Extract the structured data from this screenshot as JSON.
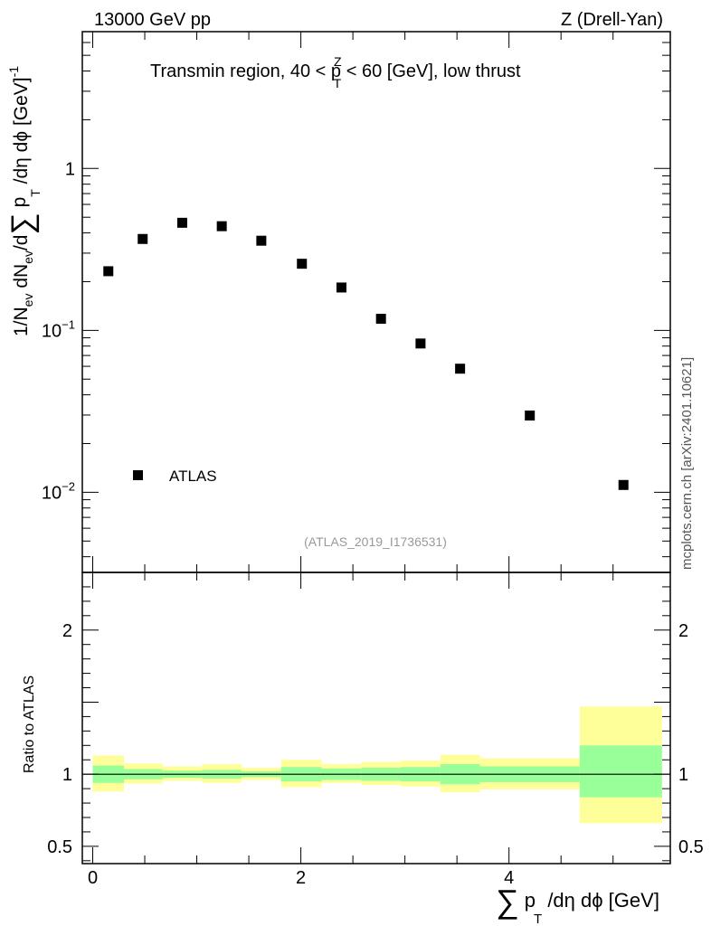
{
  "header": {
    "left": "13000 GeV pp",
    "right": "Z (Drell-Yan)"
  },
  "title": {
    "main": "Transmin region, 40 < p",
    "sup": "Z",
    "sub": "T",
    "rest": " < 60 [GeV], low thrust"
  },
  "watermark": "mcplots.cern.ch [arXiv:2401.10621]",
  "analysis_id": "(ATLAS_2019_I1736531)",
  "y_label": {
    "a": "1/N",
    "a_sub": "ev",
    "b": " dN",
    "b_sub": "ev",
    "c": "/d",
    "sum": "∑",
    "d": " p",
    "d_sub": "T",
    "e": " /dη dϕ  [GeV]",
    "e_sup": "-1"
  },
  "x_label": {
    "sum": "∑",
    "a": " p",
    "a_sub": "T",
    "b": " /dη dϕ [GeV]"
  },
  "ratio_label": "Ratio to ATLAS",
  "main_ticks": [
    {
      "value": 1,
      "label": "1"
    },
    {
      "value": 0.1,
      "label": "10",
      "sup": "−1"
    },
    {
      "value": 0.01,
      "label": "10",
      "sup": "−2"
    }
  ],
  "ratio_ticks": [
    {
      "value": 2,
      "label": "2"
    },
    {
      "value": 1,
      "label": "1"
    },
    {
      "value": 0.5,
      "label": "0.5"
    }
  ],
  "x_ticks": [
    {
      "value": 0,
      "label": "0"
    },
    {
      "value": 2,
      "label": "2"
    },
    {
      "value": 4,
      "label": "4"
    }
  ],
  "colors": {
    "band_outer": "#ffff99",
    "band_inner": "#99ff99",
    "marker": "#000000"
  },
  "chart_data": [
    {
      "type": "scatter",
      "y_scale": "log",
      "xlim": [
        -0.1,
        5.55
      ],
      "ylim": [
        0.0032,
        7.0
      ],
      "series": [
        {
          "name": "ATLAS",
          "x": [
            0.15,
            0.48,
            0.86,
            1.24,
            1.62,
            2.01,
            2.39,
            2.77,
            3.15,
            3.53,
            4.2,
            5.1
          ],
          "y": [
            0.232,
            0.367,
            0.462,
            0.44,
            0.358,
            0.258,
            0.184,
            0.118,
            0.083,
            0.058,
            0.0298,
            0.0111
          ]
        }
      ],
      "legend": "lower-left"
    },
    {
      "type": "area",
      "ylim": [
        0.38,
        2.4
      ],
      "reference_line": 1,
      "bins": [
        {
          "x0": 0.0,
          "x1": 0.3,
          "inner": [
            0.94,
            1.06
          ],
          "outer": [
            0.88,
            1.13
          ]
        },
        {
          "x0": 0.3,
          "x1": 0.67,
          "inner": [
            0.965,
            1.035
          ],
          "outer": [
            0.935,
            1.075
          ]
        },
        {
          "x0": 0.67,
          "x1": 1.05,
          "inner": [
            0.975,
            1.025
          ],
          "outer": [
            0.955,
            1.055
          ]
        },
        {
          "x0": 1.05,
          "x1": 1.43,
          "inner": [
            0.97,
            1.03
          ],
          "outer": [
            0.94,
            1.07
          ]
        },
        {
          "x0": 1.43,
          "x1": 1.81,
          "inner": [
            0.98,
            1.02
          ],
          "outer": [
            0.96,
            1.045
          ]
        },
        {
          "x0": 1.81,
          "x1": 2.2,
          "inner": [
            0.95,
            1.05
          ],
          "outer": [
            0.91,
            1.1
          ]
        },
        {
          "x0": 2.2,
          "x1": 2.58,
          "inner": [
            0.96,
            1.04
          ],
          "outer": [
            0.94,
            1.07
          ]
        },
        {
          "x0": 2.58,
          "x1": 2.96,
          "inner": [
            0.955,
            1.045
          ],
          "outer": [
            0.925,
            1.085
          ]
        },
        {
          "x0": 2.96,
          "x1": 3.34,
          "inner": [
            0.95,
            1.05
          ],
          "outer": [
            0.915,
            1.095
          ]
        },
        {
          "x0": 3.34,
          "x1": 3.72,
          "inner": [
            0.93,
            1.07
          ],
          "outer": [
            0.875,
            1.135
          ]
        },
        {
          "x0": 3.72,
          "x1": 4.68,
          "inner": [
            0.945,
            1.055
          ],
          "outer": [
            0.895,
            1.11
          ]
        },
        {
          "x0": 4.68,
          "x1": 5.47,
          "inner": [
            0.84,
            1.2
          ],
          "outer": [
            0.66,
            1.47
          ]
        }
      ]
    }
  ]
}
